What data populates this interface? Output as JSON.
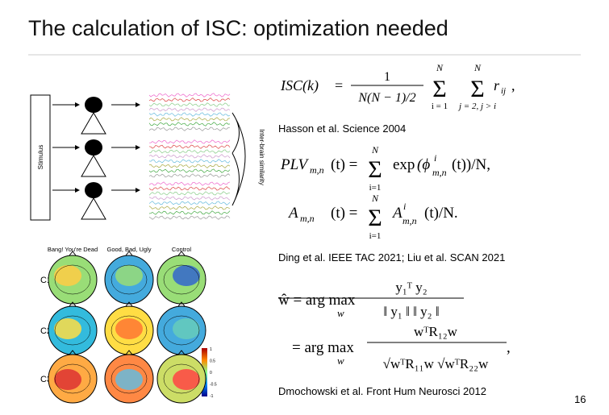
{
  "title": "The calculation of ISC: optimization needed",
  "diagram": {
    "stimulus": "Stimulus",
    "similarity": "Inter-brain similarity"
  },
  "topomaps": {
    "columns": [
      "Bang! You're Dead",
      "Good, Bad, Ugly",
      "Control"
    ],
    "rows": [
      "C1",
      "C2",
      "C3"
    ],
    "colorbar": [
      1,
      0.5,
      0,
      -0.5,
      -1
    ]
  },
  "equations": {
    "isc": [
      "ISC(k)",
      "=",
      "1",
      "N(N − 1)/2",
      "Σ",
      "N",
      "i = 1",
      "Σ",
      "N",
      "j = 2, j > i",
      "r",
      "ij",
      ","
    ],
    "plv": [
      "PLV",
      "m,n",
      "(t) =",
      "Σ",
      "N",
      "i=1",
      "exp",
      "(ϕ",
      "i",
      "m,n",
      "(t))/N,"
    ],
    "amp": [
      "A",
      "m,n",
      "(t) =",
      "Σ",
      "N",
      "i=1",
      "A",
      "i",
      "m,n",
      "(t)/N."
    ],
    "w1": [
      "ŵ = arg max",
      "w",
      "y₁ᵀ y₂",
      "‖ y₁ ‖   ‖ y₂ ‖"
    ],
    "w2": [
      "= arg max",
      "w",
      "wᵀR₁₂w",
      "√wᵀR₁₁w √wᵀR₂₂w",
      ","
    ]
  },
  "citations": [
    "Hasson et al. Science 2004",
    "Ding et al. IEEE TAC 2021; Liu et al. SCAN 2021",
    "Dmochowski et al. Front Hum Neurosci 2012"
  ],
  "page_number": "16"
}
